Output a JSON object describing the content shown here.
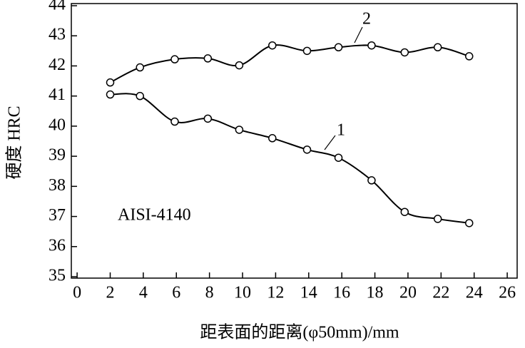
{
  "chart_data": {
    "type": "line",
    "xlabel": "距表面的距离(φ50mm)/mm",
    "ylabel": "硬度  HRC",
    "annotation": "AISI-4140",
    "xlim": [
      -0.35,
      26.6
    ],
    "xticks": [
      0,
      2,
      4,
      6,
      8,
      10,
      12,
      14,
      16,
      18,
      20,
      22,
      24,
      26
    ],
    "ylim": [
      35,
      44
    ],
    "yticks": [
      35,
      36,
      37,
      38,
      39,
      40,
      41,
      42,
      43,
      44
    ],
    "series": [
      {
        "name": "1",
        "color": "#000000",
        "x": [
          2,
          3.8,
          5.9,
          7.9,
          9.8,
          11.8,
          13.9,
          15.8,
          17.8,
          19.8,
          21.8,
          23.7
        ],
        "values": [
          41.05,
          41.0,
          40.15,
          40.25,
          39.88,
          39.6,
          39.22,
          38.95,
          38.2,
          37.15,
          36.92,
          36.78
        ]
      },
      {
        "name": "2",
        "color": "#000000",
        "x": [
          2,
          3.8,
          5.9,
          7.9,
          9.8,
          11.8,
          13.9,
          15.8,
          17.8,
          19.8,
          21.8,
          23.7
        ],
        "values": [
          41.45,
          41.95,
          42.22,
          42.25,
          42.02,
          42.68,
          42.5,
          42.62,
          42.68,
          42.45,
          42.62,
          42.32
        ]
      }
    ]
  }
}
